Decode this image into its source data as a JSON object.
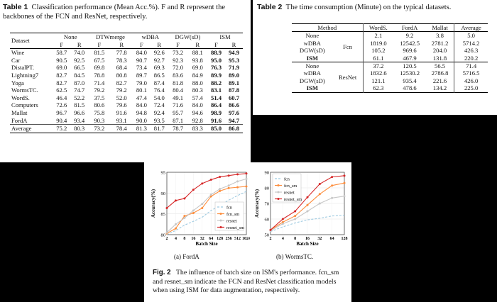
{
  "table1": {
    "caption_label": "Table 1",
    "caption_text": "Classification performance (Mean Acc.%). F and R represent the backbones of the FCN and ResNet, respectively.",
    "header_dataset": "Dataset",
    "methods": [
      "None",
      "DTWmerge",
      "wDBA",
      "DGW(sD)",
      "ISM"
    ],
    "sub_headers": [
      "F",
      "R"
    ],
    "rows": [
      {
        "name": "Wine",
        "vals": [
          "58.7",
          "74.0",
          "81.5",
          "77.8",
          "84.0",
          "92.6",
          "73.2",
          "88.1",
          "88.9",
          "94.9"
        ]
      },
      {
        "name": "Car",
        "vals": [
          "90.5",
          "92.5",
          "67.5",
          "78.3",
          "90.7",
          "92.7",
          "92.3",
          "93.8",
          "95.0",
          "95.3"
        ]
      },
      {
        "name": "DistalPT.",
        "vals": [
          "69.0",
          "66.5",
          "69.8",
          "68.4",
          "73.4",
          "69.3",
          "72.0",
          "69.0",
          "76.3",
          "71.9"
        ]
      },
      {
        "name": "Lightning7",
        "vals": [
          "82.7",
          "84.5",
          "78.8",
          "80.8",
          "89.7",
          "86.5",
          "83.6",
          "84.9",
          "89.9",
          "89.0"
        ]
      },
      {
        "name": "Yoga",
        "vals": [
          "82.7",
          "87.0",
          "71.4",
          "82.7",
          "79.0",
          "87.4",
          "81.8",
          "88.0",
          "88.2",
          "89.1"
        ]
      },
      {
        "name": "WormsTC.",
        "vals": [
          "62.5",
          "74.7",
          "79.2",
          "79.2",
          "80.1",
          "76.4",
          "80.4",
          "80.3",
          "83.1",
          "87.8"
        ]
      },
      {
        "name": "WordS.",
        "vals": [
          "46.4",
          "52.2",
          "37.5",
          "52.0",
          "47.4",
          "54.0",
          "49.1",
          "57.4",
          "51.4",
          "60.7"
        ]
      },
      {
        "name": "Computers",
        "vals": [
          "72.6",
          "81.5",
          "80.6",
          "79.6",
          "84.0",
          "72.4",
          "71.6",
          "84.0",
          "86.4",
          "86.6"
        ]
      },
      {
        "name": "Mallat",
        "vals": [
          "96.7",
          "96.6",
          "75.8",
          "91.6",
          "94.8",
          "92.4",
          "95.7",
          "94.6",
          "98.9",
          "97.6"
        ]
      },
      {
        "name": "FordA",
        "vals": [
          "90.4",
          "93.4",
          "90.3",
          "93.1",
          "90.0",
          "93.5",
          "87.1",
          "92.8",
          "91.6",
          "94.7"
        ]
      }
    ],
    "average": {
      "name": "Average",
      "vals": [
        "75.2",
        "80.3",
        "73.2",
        "78.4",
        "81.3",
        "81.7",
        "78.7",
        "83.3",
        "85.0",
        "86.8"
      ]
    }
  },
  "table2": {
    "caption_label": "Table 2",
    "caption_text": "The time consumption (Minute) on the typical datasets.",
    "headers": [
      "Method",
      "WordS.",
      "FordA",
      "Mallat",
      "Average"
    ],
    "groups": [
      {
        "backbone": "Fcn",
        "rows": [
          {
            "method": "None",
            "vals": [
              "2.1",
              "9.2",
              "3.8",
              "5.0"
            ]
          },
          {
            "method": "wDBA",
            "vals": [
              "1819.0",
              "12542.5",
              "2781.2",
              "5714.2"
            ]
          },
          {
            "method": "DGW(sD)",
            "vals": [
              "105.2",
              "969.6",
              "204.0",
              "426.3"
            ]
          },
          {
            "method": "ISM",
            "vals": [
              "61.1",
              "467.9",
              "131.8",
              "220.2"
            ]
          }
        ]
      },
      {
        "backbone": "ResNet",
        "rows": [
          {
            "method": "None",
            "vals": [
              "37.2",
              "120.5",
              "56.5",
              "71.4"
            ]
          },
          {
            "method": "wDBA",
            "vals": [
              "1832.6",
              "12530.2",
              "2786.8",
              "5716.5"
            ]
          },
          {
            "method": "DGW(sD)",
            "vals": [
              "121.1",
              "935.4",
              "221.6",
              "426.0"
            ]
          },
          {
            "method": "ISM",
            "vals": [
              "62.3",
              "478.6",
              "134.2",
              "225.0"
            ]
          }
        ]
      }
    ]
  },
  "figure": {
    "caption_label": "Fig. 2",
    "caption_text": "The influence of batch size on ISM's performance. fcn_sm and resnet_sm indicate the FCN and ResNet classification models when using ISM for data augmentation, respectively.",
    "colors": {
      "fcn": "#9ecae1",
      "fcn_sm": "#fd8d3c",
      "resnet": "#c7c7c7",
      "resnet_sm": "#d62728"
    }
  },
  "chart_data": [
    {
      "type": "line",
      "subtitle": "(a) FordA",
      "xlabel": "Batch Size",
      "ylabel": "Accuracy(%)",
      "categories": [
        "2",
        "4",
        "8",
        "16",
        "32",
        "64",
        "128",
        "256",
        "512",
        "1024"
      ],
      "ylim": [
        80,
        95
      ],
      "yticks": [
        80,
        85,
        90,
        95
      ],
      "legend_position": "center-right",
      "series": [
        {
          "name": "fcn",
          "style": "dashed",
          "color": "#9ecae1",
          "values": [
            80.0,
            81.0,
            82.3,
            83.2,
            84.2,
            85.8,
            87.0,
            88.3,
            89.4,
            90.4
          ]
        },
        {
          "name": "fcn_sm",
          "style": "solid",
          "color": "#fd8d3c",
          "values": [
            80.3,
            81.5,
            84.5,
            85.2,
            86.4,
            89.2,
            90.5,
            91.2,
            91.4,
            91.6
          ]
        },
        {
          "name": "resnet",
          "style": "solid",
          "color": "#c7c7c7",
          "values": [
            80.5,
            82.5,
            84.0,
            85.8,
            87.4,
            89.6,
            91.0,
            91.8,
            92.8,
            93.4
          ]
        },
        {
          "name": "resnet_sm",
          "style": "solid",
          "color": "#d62728",
          "values": [
            86.4,
            88.2,
            88.7,
            90.8,
            92.3,
            93.2,
            93.9,
            94.2,
            94.5,
            94.7
          ]
        }
      ]
    },
    {
      "type": "line",
      "subtitle": "(b) WormsTC.",
      "xlabel": "Batch Size",
      "ylabel": "Accuracy(%)",
      "categories": [
        "2",
        "4",
        "8",
        "16",
        "32",
        "64",
        "128"
      ],
      "ylim": [
        50,
        90
      ],
      "yticks": [
        50,
        60,
        70,
        80,
        90
      ],
      "legend_position": "top-left",
      "series": [
        {
          "name": "fcn",
          "style": "dashed",
          "color": "#9ecae1",
          "values": [
            52.0,
            55.0,
            57.5,
            59.5,
            60.5,
            62.0,
            62.5
          ]
        },
        {
          "name": "fcn_sm",
          "style": "solid",
          "color": "#fd8d3c",
          "values": [
            53.0,
            58.0,
            62.0,
            69.0,
            76.0,
            81.5,
            83.1
          ]
        },
        {
          "name": "resnet",
          "style": "solid",
          "color": "#c7c7c7",
          "values": [
            52.5,
            57.0,
            60.0,
            65.0,
            70.0,
            73.5,
            74.7
          ]
        },
        {
          "name": "resnet_sm",
          "style": "solid",
          "color": "#d62728",
          "values": [
            53.0,
            60.0,
            65.0,
            74.0,
            82.5,
            87.0,
            87.8
          ]
        }
      ]
    }
  ]
}
